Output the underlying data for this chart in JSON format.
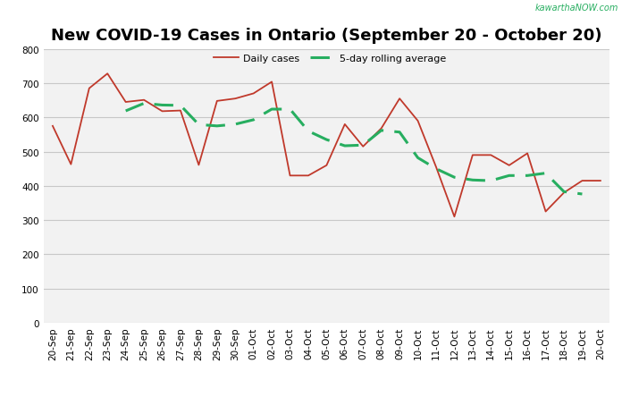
{
  "title": "New COVID-19 Cases in Ontario (September 20 - October 20)",
  "watermark": "kawarthaNOW.com",
  "daily_cases": [
    575,
    463,
    685,
    728,
    645,
    651,
    618,
    620,
    461,
    648,
    655,
    670,
    704,
    430,
    430,
    460,
    580,
    515,
    568,
    655,
    590,
    455,
    310,
    490,
    490,
    460,
    495,
    325,
    380,
    415,
    415
  ],
  "dates": [
    "20-Sep",
    "21-Sep",
    "22-Sep",
    "23-Sep",
    "24-Sep",
    "25-Sep",
    "26-Sep",
    "27-Sep",
    "28-Sep",
    "29-Sep",
    "30-Sep",
    "01-Oct",
    "02-Oct",
    "03-Oct",
    "04-Oct",
    "05-Oct",
    "06-Oct",
    "07-Oct",
    "08-Oct",
    "09-Oct",
    "10-Oct",
    "11-Oct",
    "12-Oct",
    "13-Oct",
    "14-Oct",
    "15-Oct",
    "16-Oct",
    "17-Oct",
    "18-Oct",
    "19-Oct",
    "20-Oct"
  ],
  "rolling_avg": [
    null,
    null,
    null,
    null,
    619,
    641,
    636,
    635,
    579,
    575,
    580,
    593,
    624,
    624,
    560,
    535,
    517,
    519,
    562,
    557,
    482,
    450,
    425,
    417,
    415,
    430,
    430,
    437,
    383,
    376,
    null
  ],
  "ylim": [
    0,
    800
  ],
  "yticks": [
    0,
    100,
    200,
    300,
    400,
    500,
    600,
    700,
    800
  ],
  "line_color_daily": "#c0392b",
  "line_color_rolling": "#27ae60",
  "bg_color": "#f2f2f2",
  "legend_label_daily": "Daily cases",
  "legend_label_rolling": "5-day rolling average",
  "grid_color": "#c8c8c8",
  "title_fontsize": 13,
  "tick_fontsize": 7.5,
  "watermark_color": "#27ae60",
  "watermark_fontsize": 7
}
